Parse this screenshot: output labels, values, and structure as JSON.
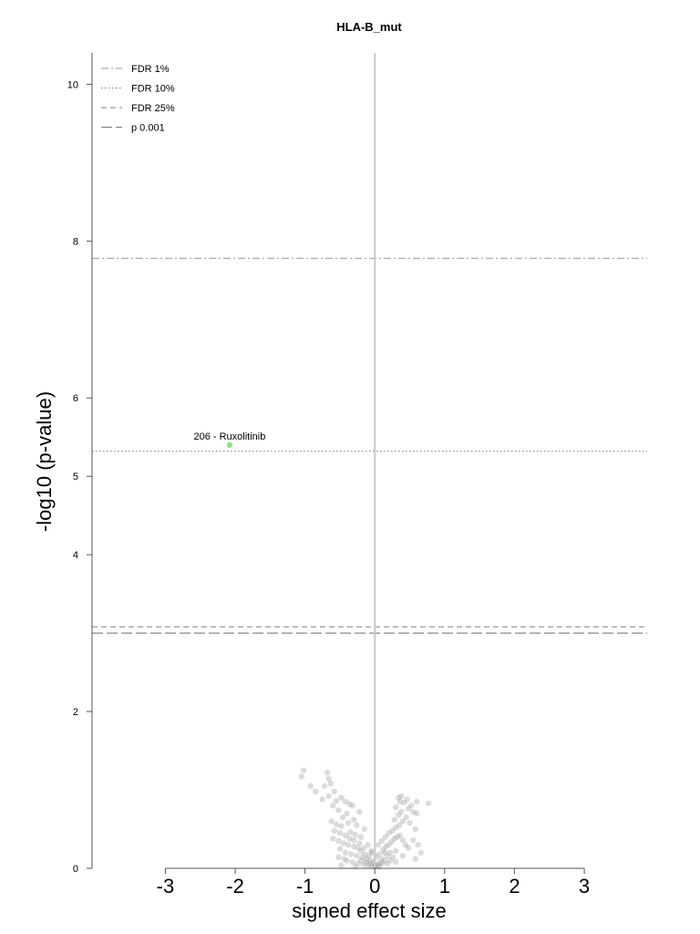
{
  "chart_data": {
    "type": "scatter",
    "title": "HLA-B_mut",
    "xlabel": "signed effect size",
    "ylabel": "-log10 (p-value)",
    "xlim": [
      -4.05,
      3.9
    ],
    "ylim": [
      0,
      10.4
    ],
    "x_ticks": [
      -3,
      -2,
      -1,
      0,
      1,
      2,
      3
    ],
    "y_ticks": [
      0,
      2,
      4,
      5,
      6,
      8,
      10
    ],
    "grid": false,
    "legend_position": "top-left",
    "threshold_lines": [
      {
        "name": "FDR 1%",
        "y": 7.78,
        "style": "dashdot",
        "color": "#aaaaaa"
      },
      {
        "name": "FDR 10%",
        "y": 5.32,
        "style": "dotted",
        "color": "#888888"
      },
      {
        "name": "FDR 25%",
        "y": 3.08,
        "style": "dashed",
        "color": "#999999"
      },
      {
        "name": "p 0.001",
        "y": 3.0,
        "style": "longdash",
        "color": "#888888"
      }
    ],
    "highlight": {
      "label": "206 - Ruxolitinib",
      "x": -2.08,
      "y": 5.4,
      "color": "#8fe08f"
    },
    "points": [
      [
        -1.02,
        1.25
      ],
      [
        -1.05,
        1.17
      ],
      [
        -0.92,
        1.05
      ],
      [
        -0.85,
        0.98
      ],
      [
        -0.68,
        1.22
      ],
      [
        -0.66,
        1.14
      ],
      [
        -0.63,
        1.08
      ],
      [
        -0.72,
        1.05
      ],
      [
        -0.58,
        0.98
      ],
      [
        -0.66,
        0.92
      ],
      [
        -0.75,
        0.88
      ],
      [
        -0.55,
        0.86
      ],
      [
        -0.48,
        0.9
      ],
      [
        -0.42,
        0.85
      ],
      [
        -0.36,
        0.82
      ],
      [
        -0.32,
        0.8
      ],
      [
        -0.22,
        0.72
      ],
      [
        -0.6,
        0.8
      ],
      [
        -0.52,
        0.74
      ],
      [
        -0.4,
        0.7
      ],
      [
        -0.46,
        0.65
      ],
      [
        -0.62,
        0.6
      ],
      [
        -0.55,
        0.56
      ],
      [
        -0.48,
        0.54
      ],
      [
        -0.38,
        0.58
      ],
      [
        -0.3,
        0.62
      ],
      [
        -0.26,
        0.55
      ],
      [
        -0.58,
        0.48
      ],
      [
        -0.5,
        0.45
      ],
      [
        -0.42,
        0.42
      ],
      [
        -0.35,
        0.46
      ],
      [
        -0.28,
        0.43
      ],
      [
        -0.2,
        0.4
      ],
      [
        -0.15,
        0.5
      ],
      [
        -0.6,
        0.38
      ],
      [
        -0.52,
        0.35
      ],
      [
        -0.45,
        0.32
      ],
      [
        -0.38,
        0.3
      ],
      [
        -0.3,
        0.28
      ],
      [
        -0.22,
        0.32
      ],
      [
        -0.16,
        0.26
      ],
      [
        -0.1,
        0.3
      ],
      [
        -0.05,
        0.22
      ],
      [
        -0.5,
        0.25
      ],
      [
        -0.42,
        0.2
      ],
      [
        -0.34,
        0.18
      ],
      [
        -0.26,
        0.16
      ],
      [
        -0.18,
        0.14
      ],
      [
        -0.12,
        0.12
      ],
      [
        -0.06,
        0.1
      ],
      [
        -0.02,
        0.08
      ],
      [
        -0.4,
        0.1
      ],
      [
        -0.32,
        0.08
      ],
      [
        -0.24,
        0.06
      ],
      [
        -0.16,
        0.05
      ],
      [
        -0.1,
        0.04
      ],
      [
        -0.04,
        0.03
      ],
      [
        0.0,
        0.02
      ],
      [
        0.04,
        0.05
      ],
      [
        0.08,
        0.07
      ],
      [
        -0.08,
        0.16
      ],
      [
        -0.04,
        0.2
      ],
      [
        0.02,
        0.14
      ],
      [
        0.06,
        0.18
      ],
      [
        0.1,
        0.12
      ],
      [
        0.14,
        0.1
      ],
      [
        0.18,
        0.16
      ],
      [
        0.22,
        0.2
      ],
      [
        0.26,
        0.14
      ],
      [
        0.3,
        0.22
      ],
      [
        0.12,
        0.24
      ],
      [
        0.16,
        0.28
      ],
      [
        0.2,
        0.3
      ],
      [
        0.24,
        0.34
      ],
      [
        0.28,
        0.38
      ],
      [
        0.32,
        0.4
      ],
      [
        0.36,
        0.42
      ],
      [
        0.4,
        0.36
      ],
      [
        0.44,
        0.3
      ],
      [
        0.48,
        0.26
      ],
      [
        0.05,
        0.3
      ],
      [
        0.1,
        0.35
      ],
      [
        0.15,
        0.4
      ],
      [
        0.2,
        0.45
      ],
      [
        0.25,
        0.48
      ],
      [
        0.3,
        0.52
      ],
      [
        0.35,
        0.55
      ],
      [
        0.4,
        0.6
      ],
      [
        0.45,
        0.65
      ],
      [
        0.5,
        0.58
      ],
      [
        0.28,
        0.62
      ],
      [
        0.34,
        0.68
      ],
      [
        0.38,
        0.72
      ],
      [
        0.3,
        0.78
      ],
      [
        0.36,
        0.85
      ],
      [
        0.34,
        0.9
      ],
      [
        0.38,
        0.92
      ],
      [
        0.46,
        0.88
      ],
      [
        0.42,
        0.84
      ],
      [
        0.52,
        0.8
      ],
      [
        0.55,
        0.72
      ],
      [
        0.6,
        0.7
      ],
      [
        0.58,
        0.5
      ],
      [
        0.62,
        0.3
      ],
      [
        0.66,
        0.2
      ],
      [
        0.58,
        0.12
      ],
      [
        0.77,
        0.83
      ],
      [
        0.6,
        0.85
      ],
      [
        0.48,
        0.76
      ],
      [
        0.55,
        0.36
      ],
      [
        -0.2,
        0.22
      ],
      [
        -0.14,
        0.18
      ],
      [
        -0.24,
        0.26
      ],
      [
        -0.3,
        0.36
      ],
      [
        -0.36,
        0.38
      ],
      [
        -0.12,
        0.08
      ],
      [
        -0.06,
        0.06
      ],
      [
        0.02,
        0.04
      ],
      [
        0.06,
        0.02
      ],
      [
        0.1,
        0.06
      ],
      [
        -0.2,
        0.1
      ],
      [
        0.18,
        0.06
      ],
      [
        0.22,
        0.1
      ],
      [
        0.14,
        0.2
      ],
      [
        -0.44,
        0.12
      ],
      [
        -0.52,
        0.14
      ],
      [
        -0.48,
        0.04
      ],
      [
        -0.28,
        0.02
      ],
      [
        0.3,
        0.08
      ],
      [
        0.4,
        0.16
      ]
    ]
  }
}
